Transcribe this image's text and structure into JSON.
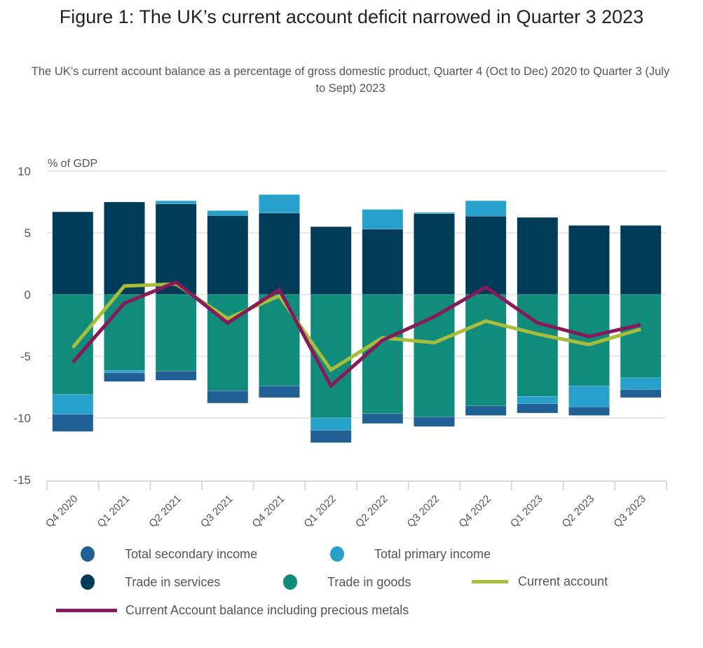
{
  "header": {
    "title": "Figure 1: The UK’s current account deficit narrowed in Quarter 3 2023",
    "subtitle": "The UK’s current account balance as a percentage of gross domestic product, Quarter 4 (Oct to Dec) 2020 to Quarter 3 (July to Sept) 2023"
  },
  "chart_data": {
    "type": "bar",
    "stacked": true,
    "title": "Figure 1: The UK’s current account deficit narrowed in Quarter 3 2023",
    "subtitle": "The UK’s current account balance as a percentage of gross domestic product, Quarter 4 (Oct to Dec) 2020 to Quarter 3 (July to Sept) 2023",
    "xlabel": "",
    "ylabel": "% of GDP",
    "ylim": [
      -15,
      10
    ],
    "yticks": [
      10,
      5,
      0,
      -5,
      -10,
      -15
    ],
    "grid": true,
    "legend_position": "bottom",
    "categories": [
      "Q4 2020",
      "Q1 2021",
      "Q2 2021",
      "Q3 2021",
      "Q4 2021",
      "Q1 2022",
      "Q2 2022",
      "Q3 2022",
      "Q4 2022",
      "Q1 2023",
      "Q2 2023",
      "Q3 2023"
    ],
    "series": [
      {
        "name": "Trade in services",
        "kind": "bar",
        "color": "#003c57",
        "values": [
          6.7,
          7.5,
          7.35,
          6.4,
          6.6,
          5.5,
          5.3,
          6.55,
          6.35,
          6.25,
          5.6,
          5.6
        ]
      },
      {
        "name": "Trade in goods",
        "kind": "bar",
        "color": "#118c7b",
        "values": [
          -8.1,
          -6.15,
          -6.2,
          -7.8,
          -7.4,
          -10.0,
          -9.65,
          -9.9,
          -9.0,
          -8.25,
          -7.4,
          -6.75
        ]
      },
      {
        "name": "Total primary income",
        "kind": "bar",
        "color": "#27a0cc",
        "values": [
          -1.6,
          -0.2,
          0.25,
          0.4,
          1.5,
          -1.0,
          1.6,
          0.1,
          1.25,
          -0.6,
          -1.7,
          -0.95
        ]
      },
      {
        "name": "Total secondary income",
        "kind": "bar",
        "color": "#206095",
        "values": [
          -1.4,
          -0.7,
          -0.75,
          -1.0,
          -0.95,
          -1.0,
          -0.8,
          -0.8,
          -0.8,
          -0.75,
          -0.7,
          -0.65
        ]
      },
      {
        "name": "Current account",
        "kind": "line",
        "color": "#a8bd3a",
        "values": [
          -4.3,
          0.7,
          0.85,
          -1.95,
          -0.1,
          -6.1,
          -3.5,
          -3.9,
          -2.15,
          -3.2,
          -4.05,
          -2.8
        ]
      },
      {
        "name": "Current Account balance including precious metals",
        "kind": "line",
        "color": "#871a5b",
        "values": [
          -5.5,
          -0.7,
          1.0,
          -2.3,
          0.4,
          -7.4,
          -3.7,
          -1.8,
          0.6,
          -2.3,
          -3.4,
          -2.45
        ]
      }
    ]
  },
  "legend": {
    "items": [
      {
        "label": "Total secondary income",
        "type": "dot",
        "color": "#206095"
      },
      {
        "label": "Total primary income",
        "type": "dot",
        "color": "#27a0cc"
      },
      {
        "label": "Trade in services",
        "type": "dot",
        "color": "#003c57"
      },
      {
        "label": "Trade in goods",
        "type": "dot",
        "color": "#118c7b"
      },
      {
        "label": "Current account",
        "type": "line",
        "color": "#a8bd3a"
      },
      {
        "label": "Current Account balance including precious metals",
        "type": "line",
        "color": "#871a5b"
      }
    ]
  }
}
